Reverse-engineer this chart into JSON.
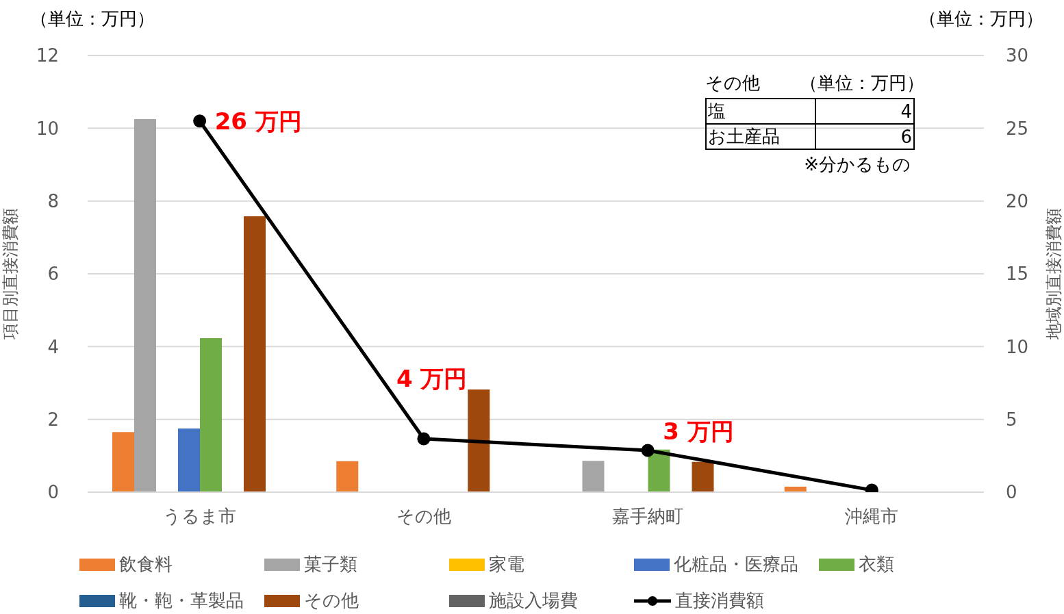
{
  "chart_data": {
    "type": "bar",
    "ylabel": "項目別直接消費額",
    "y2label": "地域別直接消費額",
    "categories": [
      "うるま市",
      "その他",
      "嘉手納町",
      "沖縄市"
    ],
    "series": [
      {
        "name": "飲食料",
        "color": "#ed7d31",
        "values": [
          1.65,
          0.85,
          null,
          0.15
        ]
      },
      {
        "name": "菓子類",
        "color": "#a5a5a5",
        "values": [
          10.25,
          null,
          0.86,
          null
        ]
      },
      {
        "name": "家電",
        "color": "#ffc000",
        "values": [
          null,
          null,
          null,
          null
        ]
      },
      {
        "name": "化粧品・医療品",
        "color": "#4472c4",
        "values": [
          1.75,
          null,
          null,
          null
        ]
      },
      {
        "name": "衣類",
        "color": "#70ad47",
        "values": [
          4.23,
          null,
          1.17,
          null
        ]
      },
      {
        "name": "靴・鞄・革製品",
        "color": "#255e91",
        "values": [
          null,
          null,
          null,
          null
        ]
      },
      {
        "name": "その他",
        "color": "#9e480e",
        "values": [
          7.58,
          2.82,
          0.83,
          null
        ]
      },
      {
        "name": "施設入場費",
        "color": "#636363",
        "values": [
          null,
          null,
          null,
          null
        ]
      },
      {
        "name": "直接消費額",
        "type": "line",
        "axis": "y2",
        "color": "#000000",
        "marker": "circle",
        "values": [
          25.5,
          3.67,
          2.87,
          0.14
        ],
        "value_labels": [
          "26 万円",
          "4 万円",
          "3 万円",
          null
        ]
      }
    ],
    "ylim": [
      0,
      12
    ],
    "yticks": [
      0,
      2,
      4,
      6,
      8,
      10,
      12
    ],
    "y2lim": [
      0,
      30
    ],
    "y2ticks": [
      0,
      5,
      10,
      15,
      20,
      25,
      30
    ],
    "grid": "y",
    "legend": "bottom",
    "annotations": [
      "（単位：万円）",
      "（単位：万円）",
      "その他",
      "（単位：万円）",
      "塩",
      "4",
      "お土産品",
      "6",
      "※分かるもの"
    ]
  }
}
